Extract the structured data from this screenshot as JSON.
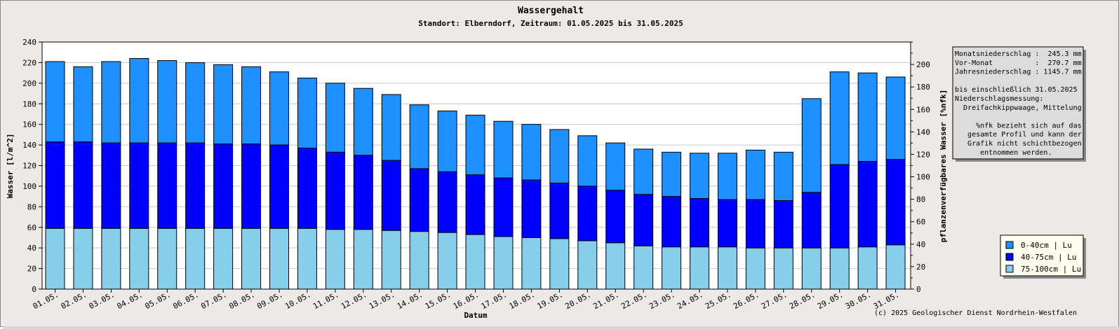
{
  "chart_data": {
    "type": "bar",
    "stacked": true,
    "title": "Wassergehalt",
    "subtitle": "Standort: Elberndorf, Zeitraum: 01.05.2025 bis 31.05.2025",
    "xlabel": "Datum",
    "ylabel": "Wasser [l/m^2]",
    "y2label": "pflanzenverfügbares Wasser [%nfk]",
    "ylim": [
      0,
      240
    ],
    "y2lim": [
      0,
      220
    ],
    "yticks": [
      "0",
      "20",
      "40",
      "60",
      "80",
      "100",
      "120",
      "140",
      "160",
      "180",
      "200",
      "220",
      "240"
    ],
    "y2ticks": [
      "0",
      "20",
      "40",
      "60",
      "80",
      "100",
      "120",
      "140",
      "160",
      "180",
      "200"
    ],
    "grid": true,
    "legend_position": "bottom-right",
    "categories": [
      "01.05.",
      "02.05.",
      "03.05.",
      "04.05.",
      "05.05.",
      "06.05.",
      "07.05.",
      "08.05.",
      "09.05.",
      "10.05.",
      "11.05.",
      "12.05.",
      "13.05.",
      "14.05.",
      "15.05.",
      "16.05.",
      "17.05.",
      "18.05.",
      "19.05.",
      "20.05.",
      "21.05.",
      "22.05.",
      "23.05.",
      "24.05.",
      "25.05.",
      "26.05.",
      "27.05.",
      "28.05.",
      "29.05.",
      "30.05.",
      "31.05."
    ],
    "series": [
      {
        "name": "75-100cm | Lu",
        "color": "#87ceeb",
        "values": [
          59,
          59,
          59,
          59,
          59,
          59,
          59,
          59,
          59,
          59,
          58,
          58,
          57,
          56,
          55,
          53,
          51,
          50,
          49,
          47,
          45,
          42,
          41,
          41,
          41,
          40,
          40,
          40,
          40,
          41,
          43
        ]
      },
      {
        "name": "40-75cm | Lu",
        "color": "#0000ff",
        "values": [
          84,
          84,
          83,
          83,
          83,
          83,
          82,
          82,
          81,
          78,
          75,
          72,
          68,
          61,
          59,
          58,
          57,
          56,
          54,
          53,
          51,
          50,
          49,
          47,
          46,
          47,
          46,
          54,
          81,
          83,
          83
        ]
      },
      {
        "name": "0-40cm | Lu",
        "color": "#1e90ff",
        "values": [
          78,
          73,
          79,
          82,
          80,
          78,
          77,
          75,
          71,
          68,
          67,
          65,
          64,
          62,
          59,
          58,
          55,
          54,
          52,
          49,
          46,
          44,
          43,
          44,
          45,
          48,
          47,
          91,
          90,
          86,
          80
        ]
      }
    ]
  },
  "info_box": {
    "lines": [
      "Monatsniederschlag :  245.3 mm",
      "Vor-Monat          :  270.7 mm",
      "Jahresniederschlag : 1145.7 mm",
      "",
      "bis einschließlich 31.05.2025",
      "Niederschlagsmessung:",
      "  Dreifachkippwaage, Mittelung",
      "",
      "     %nfk bezieht sich auf das",
      "   gesamte Profil und kann der",
      "   Grafik nicht schichtbezogen",
      "      entnommen werden."
    ]
  },
  "copyright": "(c) 2025 Geologischer Dienst Nordrhein-Westfalen"
}
